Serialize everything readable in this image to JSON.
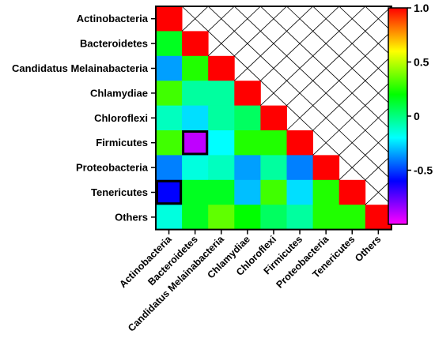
{
  "chart_data": {
    "type": "heatmap",
    "title": "",
    "xlabel": "",
    "ylabel": "",
    "categories": [
      "Actinobacteria",
      "Bacteroidetes",
      "Candidatus Melainabacteria",
      "Chlamydiae",
      "Chloroflexi",
      "Firmicutes",
      "Proteobacteria",
      "Tenericutes",
      "Others"
    ],
    "rows": [
      [
        1.0
      ],
      [
        0.15,
        1.0
      ],
      [
        -0.35,
        0.25,
        1.0
      ],
      [
        0.3,
        -0.05,
        -0.05,
        1.0
      ],
      [
        -0.1,
        -0.25,
        -0.05,
        0.05,
        1.0
      ],
      [
        0.3,
        -0.9,
        -0.2,
        0.25,
        0.25,
        1.0
      ],
      [
        -0.4,
        -0.15,
        -0.1,
        -0.35,
        -0.05,
        -0.4,
        1.0
      ],
      [
        -0.6,
        0.15,
        0.15,
        -0.3,
        0.3,
        -0.25,
        0.25,
        1.0
      ],
      [
        -0.15,
        0.15,
        0.35,
        0.2,
        0.05,
        -0.05,
        0.25,
        0.25,
        1.0
      ]
    ],
    "highlighted_cells": [
      [
        5,
        1
      ],
      [
        7,
        0
      ]
    ],
    "upper_triangle": "hatched",
    "colorbar": {
      "range": [
        -1.0,
        1.0
      ],
      "ticks": [
        {
          "value": 1.0,
          "label": "1.0"
        },
        {
          "value": 0.5,
          "label": "0.5"
        },
        {
          "value": 0,
          "label": "0"
        },
        {
          "value": -0.5,
          "label": "-0.5"
        }
      ],
      "colors": [
        "#ff00ff",
        "#0000ff",
        "#00ffff",
        "#00ff00",
        "#ffff00",
        "#ff0000"
      ]
    }
  }
}
